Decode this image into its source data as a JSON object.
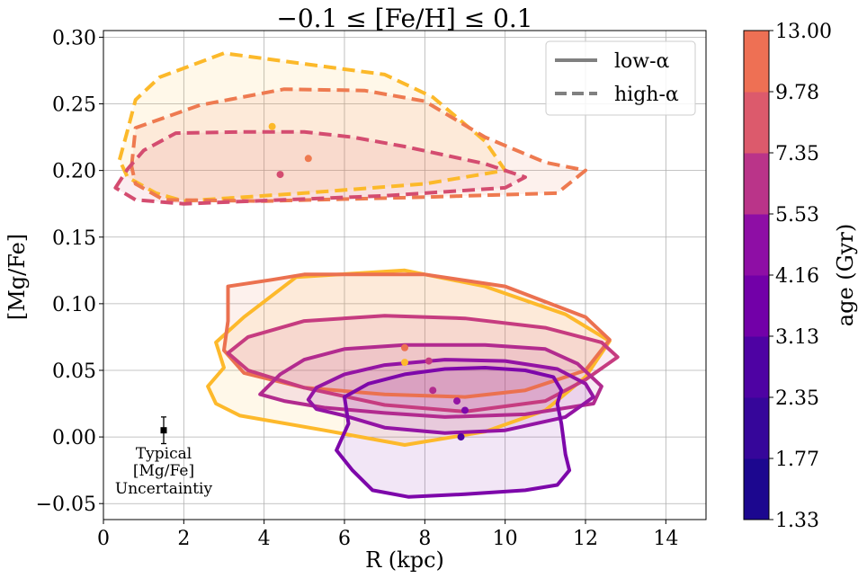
{
  "chart_data": {
    "type": "contour",
    "title": "−0.1 ≤ [Fe/H] ≤ 0.1",
    "xlabel": "R (kpc)",
    "ylabel": "[Mg/Fe]",
    "xlim": [
      0,
      15
    ],
    "ylim": [
      -0.062,
      0.305
    ],
    "xticks": [
      "0",
      "2",
      "4",
      "6",
      "8",
      "10",
      "12",
      "14"
    ],
    "xtick_values": [
      0,
      2,
      4,
      6,
      8,
      10,
      12,
      14
    ],
    "yticks": [
      "−0.05",
      "0.00",
      "0.05",
      "0.10",
      "0.15",
      "0.20",
      "0.25",
      "0.30"
    ],
    "ytick_values": [
      -0.05,
      0.0,
      0.05,
      0.1,
      0.15,
      0.2,
      0.25,
      0.3
    ],
    "grid": true,
    "legend": {
      "position": "top-right",
      "entries": [
        {
          "label": "low-α",
          "style": "solid"
        },
        {
          "label": "high-α",
          "style": "dashed"
        }
      ]
    },
    "colorbar": {
      "label": "age (Gyr)",
      "ticks": [
        "1.33",
        "1.77",
        "2.35",
        "3.13",
        "4.16",
        "5.53",
        "7.35",
        "9.78",
        "13.00"
      ],
      "values": [
        1.33,
        1.77,
        2.35,
        3.13,
        4.16,
        5.53,
        7.35,
        9.78,
        13.0
      ],
      "colors": [
        "#1c078f",
        "#36069a",
        "#4e02a3",
        "#7200a8",
        "#8e0ea5",
        "#ba3489",
        "#dc5a6c",
        "#ee7054",
        "#fdbe2c"
      ]
    },
    "series": [
      {
        "name": "high-α 13.00 Gyr",
        "style": "dashed",
        "color": "#fcb92a",
        "median": [
          4.2,
          0.233
        ],
        "contour": [
          [
            0.4,
            0.208
          ],
          [
            0.6,
            0.23
          ],
          [
            0.8,
            0.253
          ],
          [
            1.4,
            0.27
          ],
          [
            3.0,
            0.288
          ],
          [
            7.0,
            0.272
          ],
          [
            8.2,
            0.255
          ],
          [
            9.5,
            0.222
          ],
          [
            10.0,
            0.2
          ],
          [
            8.0,
            0.19
          ],
          [
            5.0,
            0.183
          ],
          [
            2.0,
            0.177
          ],
          [
            1.3,
            0.183
          ],
          [
            0.6,
            0.195
          ]
        ]
      },
      {
        "name": "high-α 9.78 Gyr",
        "style": "dashed",
        "color": "#ee7a50",
        "median": [
          5.1,
          0.209
        ],
        "contour": [
          [
            0.7,
            0.203
          ],
          [
            0.8,
            0.232
          ],
          [
            2.4,
            0.249
          ],
          [
            4.5,
            0.261
          ],
          [
            6.5,
            0.26
          ],
          [
            8.0,
            0.252
          ],
          [
            9.5,
            0.225
          ],
          [
            11.0,
            0.206
          ],
          [
            12.0,
            0.2
          ],
          [
            11.3,
            0.183
          ],
          [
            8.0,
            0.18
          ],
          [
            4.0,
            0.177
          ],
          [
            1.5,
            0.178
          ],
          [
            0.8,
            0.19
          ]
        ]
      },
      {
        "name": "high-α 7.35 Gyr",
        "style": "dashed",
        "color": "#d44c70",
        "median": [
          4.4,
          0.197
        ],
        "contour": [
          [
            0.3,
            0.187
          ],
          [
            0.6,
            0.201
          ],
          [
            1.0,
            0.215
          ],
          [
            1.8,
            0.228
          ],
          [
            3.5,
            0.229
          ],
          [
            5.0,
            0.229
          ],
          [
            6.2,
            0.225
          ],
          [
            7.5,
            0.218
          ],
          [
            9.5,
            0.205
          ],
          [
            10.5,
            0.195
          ],
          [
            10.0,
            0.187
          ],
          [
            7.0,
            0.181
          ],
          [
            4.5,
            0.178
          ],
          [
            2.0,
            0.175
          ],
          [
            0.8,
            0.178
          ]
        ]
      },
      {
        "name": "low-α 13.00 Gyr",
        "style": "solid",
        "color": "#fdb92b",
        "median": [
          7.5,
          0.056
        ],
        "contour": [
          [
            2.6,
            0.038
          ],
          [
            3.0,
            0.052
          ],
          [
            2.8,
            0.071
          ],
          [
            3.5,
            0.09
          ],
          [
            4.8,
            0.12
          ],
          [
            7.5,
            0.125
          ],
          [
            9.5,
            0.113
          ],
          [
            11.5,
            0.092
          ],
          [
            12.6,
            0.072
          ],
          [
            12.0,
            0.045
          ],
          [
            11.0,
            0.02
          ],
          [
            9.5,
            0.004
          ],
          [
            7.5,
            -0.006
          ],
          [
            5.5,
            0.005
          ],
          [
            3.4,
            0.016
          ],
          [
            2.8,
            0.025
          ]
        ]
      },
      {
        "name": "low-α 9.78 Gyr",
        "style": "solid",
        "color": "#eb7150",
        "median": [
          7.5,
          0.067
        ],
        "contour": [
          [
            3.0,
            0.065
          ],
          [
            3.1,
            0.087
          ],
          [
            3.1,
            0.113
          ],
          [
            4.2,
            0.118
          ],
          [
            5.0,
            0.122
          ],
          [
            8.0,
            0.122
          ],
          [
            10.0,
            0.113
          ],
          [
            12.0,
            0.09
          ],
          [
            12.6,
            0.073
          ],
          [
            12.0,
            0.05
          ],
          [
            10.5,
            0.035
          ],
          [
            9.0,
            0.03
          ],
          [
            7.0,
            0.032
          ],
          [
            5.0,
            0.037
          ],
          [
            3.5,
            0.048
          ]
        ]
      },
      {
        "name": "low-α 7.35 Gyr",
        "style": "solid",
        "color": "#c63c80",
        "median": [
          8.1,
          0.057
        ],
        "contour": [
          [
            3.1,
            0.063
          ],
          [
            3.6,
            0.075
          ],
          [
            5.0,
            0.087
          ],
          [
            7.0,
            0.091
          ],
          [
            9.0,
            0.089
          ],
          [
            11.0,
            0.082
          ],
          [
            12.4,
            0.071
          ],
          [
            12.8,
            0.06
          ],
          [
            12.0,
            0.043
          ],
          [
            11.0,
            0.027
          ],
          [
            9.0,
            0.019
          ],
          [
            7.0,
            0.024
          ],
          [
            5.0,
            0.037
          ],
          [
            3.6,
            0.05
          ]
        ]
      },
      {
        "name": "low-α 5.53 Gyr",
        "style": "solid",
        "color": "#b22b8f",
        "median": [
          8.2,
          0.035
        ],
        "contour": [
          [
            3.9,
            0.032
          ],
          [
            4.4,
            0.047
          ],
          [
            5.0,
            0.058
          ],
          [
            6.0,
            0.066
          ],
          [
            7.5,
            0.069
          ],
          [
            9.5,
            0.069
          ],
          [
            11.0,
            0.066
          ],
          [
            11.8,
            0.055
          ],
          [
            12.4,
            0.038
          ],
          [
            12.2,
            0.025
          ],
          [
            10.5,
            0.017
          ],
          [
            8.5,
            0.015
          ],
          [
            7.0,
            0.018
          ],
          [
            5.5,
            0.022
          ],
          [
            4.5,
            0.027
          ]
        ]
      },
      {
        "name": "low-α 4.16 Gyr",
        "style": "solid",
        "color": "#9314a4",
        "median": [
          8.8,
          0.027
        ],
        "contour": [
          [
            5.1,
            0.028
          ],
          [
            5.3,
            0.037
          ],
          [
            6.0,
            0.047
          ],
          [
            7.0,
            0.054
          ],
          [
            8.5,
            0.058
          ],
          [
            10.0,
            0.057
          ],
          [
            11.3,
            0.051
          ],
          [
            12.0,
            0.04
          ],
          [
            12.2,
            0.03
          ],
          [
            11.5,
            0.015
          ],
          [
            10.0,
            0.005
          ],
          [
            8.5,
            0.003
          ],
          [
            7.0,
            0.007
          ],
          [
            6.0,
            0.016
          ],
          [
            5.3,
            0.021
          ]
        ]
      },
      {
        "name": "low-α 3.13 Gyr",
        "style": "solid",
        "color": "#7d07aa",
        "median": [
          9.0,
          0.02
        ],
        "contour": [
          [
            6.1,
            0.01
          ],
          [
            6.0,
            0.03
          ],
          [
            6.6,
            0.04
          ],
          [
            7.5,
            0.047
          ],
          [
            8.5,
            0.051
          ],
          [
            9.5,
            0.052
          ],
          [
            10.5,
            0.05
          ],
          [
            11.2,
            0.045
          ],
          [
            11.4,
            0.035
          ],
          [
            11.3,
            0.025
          ],
          [
            11.4,
            0.01
          ],
          [
            11.5,
            -0.013
          ],
          [
            11.6,
            -0.025
          ],
          [
            11.3,
            -0.036
          ],
          [
            10.5,
            -0.04
          ],
          [
            9.0,
            -0.043
          ],
          [
            7.6,
            -0.045
          ],
          [
            6.7,
            -0.04
          ],
          [
            6.2,
            -0.025
          ],
          [
            5.8,
            -0.01
          ]
        ]
      },
      {
        "name": "low-α 2.35 Gyr",
        "style": "solid",
        "color": "#4c02a2",
        "median": [
          8.9,
          0.0
        ],
        "contour": []
      }
    ],
    "annotation": {
      "lines": [
        "Typical",
        "[Mg/Fe]",
        "Uncertaintiy"
      ],
      "point": [
        1.5,
        0.005
      ],
      "yerr": 0.01
    }
  }
}
